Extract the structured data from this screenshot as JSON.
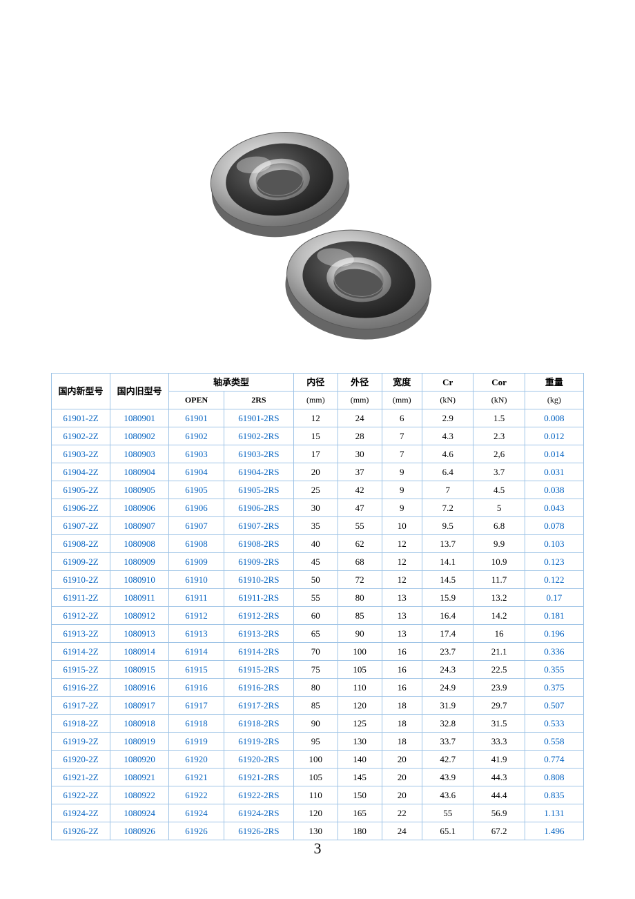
{
  "page_number": "3",
  "image": {
    "alt": "two-ball-bearings-photo",
    "outer_color": "#a8a8a8",
    "seal_color": "#3c3c3c",
    "highlight": "#f2f2f2",
    "bore_color": "#8a8a8a"
  },
  "table": {
    "border_color": "#9dc3e6",
    "link_color": "#0563c1",
    "header": {
      "new_model": "国内新型号",
      "old_model": "国内旧型号",
      "type_group": "轴承类型",
      "open": "OPEN",
      "rs": "2RS",
      "id": "内径",
      "id_unit": "(mm)",
      "od": "外径",
      "od_unit": "(mm)",
      "width": "宽度",
      "width_unit": "(mm)",
      "cr": "Cr",
      "cr_unit": "(kN)",
      "cor": "Cor",
      "cor_unit": "(kN)",
      "weight": "重量",
      "weight_unit": "(kg)"
    },
    "rows": [
      {
        "new": "61901-2Z",
        "old": "1080901",
        "open": "61901",
        "rs": "61901-2RS",
        "id": "12",
        "od": "24",
        "w": "6",
        "cr": "2.9",
        "cor": "1.5",
        "kg": "0.008"
      },
      {
        "new": "61902-2Z",
        "old": "1080902",
        "open": "61902",
        "rs": "61902-2RS",
        "id": "15",
        "od": "28",
        "w": "7",
        "cr": "4.3",
        "cor": "2.3",
        "kg": "0.012"
      },
      {
        "new": "61903-2Z",
        "old": "1080903",
        "open": "61903",
        "rs": "61903-2RS",
        "id": "17",
        "od": "30",
        "w": "7",
        "cr": "4.6",
        "cor": "2,6",
        "kg": "0.014"
      },
      {
        "new": "61904-2Z",
        "old": "1080904",
        "open": "61904",
        "rs": "61904-2RS",
        "id": "20",
        "od": "37",
        "w": "9",
        "cr": "6.4",
        "cor": "3.7",
        "kg": "0.031"
      },
      {
        "new": "61905-2Z",
        "old": "1080905",
        "open": "61905",
        "rs": "61905-2RS",
        "id": "25",
        "od": "42",
        "w": "9",
        "cr": "7",
        "cor": "4.5",
        "kg": "0.038"
      },
      {
        "new": "61906-2Z",
        "old": "1080906",
        "open": "61906",
        "rs": "61906-2RS",
        "id": "30",
        "od": "47",
        "w": "9",
        "cr": "7.2",
        "cor": "5",
        "kg": "0.043"
      },
      {
        "new": "61907-2Z",
        "old": "1080907",
        "open": "61907",
        "rs": "61907-2RS",
        "id": "35",
        "od": "55",
        "w": "10",
        "cr": "9.5",
        "cor": "6.8",
        "kg": "0.078"
      },
      {
        "new": "61908-2Z",
        "old": "1080908",
        "open": "61908",
        "rs": "61908-2RS",
        "id": "40",
        "od": "62",
        "w": "12",
        "cr": "13.7",
        "cor": "9.9",
        "kg": "0.103"
      },
      {
        "new": "61909-2Z",
        "old": "1080909",
        "open": "61909",
        "rs": "61909-2RS",
        "id": "45",
        "od": "68",
        "w": "12",
        "cr": "14.1",
        "cor": "10.9",
        "kg": "0.123"
      },
      {
        "new": "61910-2Z",
        "old": "1080910",
        "open": "61910",
        "rs": "61910-2RS",
        "id": "50",
        "od": "72",
        "w": "12",
        "cr": "14.5",
        "cor": "11.7",
        "kg": "0.122"
      },
      {
        "new": "61911-2Z",
        "old": "1080911",
        "open": "61911",
        "rs": "61911-2RS",
        "id": "55",
        "od": "80",
        "w": "13",
        "cr": "15.9",
        "cor": "13.2",
        "kg": "0.17"
      },
      {
        "new": "61912-2Z",
        "old": "1080912",
        "open": "61912",
        "rs": "61912-2RS",
        "id": "60",
        "od": "85",
        "w": "13",
        "cr": "16.4",
        "cor": "14.2",
        "kg": "0.181"
      },
      {
        "new": "61913-2Z",
        "old": "1080913",
        "open": "61913",
        "rs": "61913-2RS",
        "id": "65",
        "od": "90",
        "w": "13",
        "cr": "17.4",
        "cor": "16",
        "kg": "0.196"
      },
      {
        "new": "61914-2Z",
        "old": "1080914",
        "open": "61914",
        "rs": "61914-2RS",
        "id": "70",
        "od": "100",
        "w": "16",
        "cr": "23.7",
        "cor": "21.1",
        "kg": "0.336"
      },
      {
        "new": "61915-2Z",
        "old": "1080915",
        "open": "61915",
        "rs": "61915-2RS",
        "id": "75",
        "od": "105",
        "w": "16",
        "cr": "24.3",
        "cor": "22.5",
        "kg": "0.355"
      },
      {
        "new": "61916-2Z",
        "old": "1080916",
        "open": "61916",
        "rs": "61916-2RS",
        "id": "80",
        "od": "110",
        "w": "16",
        "cr": "24.9",
        "cor": "23.9",
        "kg": "0.375"
      },
      {
        "new": "61917-2Z",
        "old": "1080917",
        "open": "61917",
        "rs": "61917-2RS",
        "id": "85",
        "od": "120",
        "w": "18",
        "cr": "31.9",
        "cor": "29.7",
        "kg": "0.507"
      },
      {
        "new": "61918-2Z",
        "old": "1080918",
        "open": "61918",
        "rs": "61918-2RS",
        "id": "90",
        "od": "125",
        "w": "18",
        "cr": "32.8",
        "cor": "31.5",
        "kg": "0.533"
      },
      {
        "new": "61919-2Z",
        "old": "1080919",
        "open": "61919",
        "rs": "61919-2RS",
        "id": "95",
        "od": "130",
        "w": "18",
        "cr": "33.7",
        "cor": "33.3",
        "kg": "0.558"
      },
      {
        "new": "61920-2Z",
        "old": "1080920",
        "open": "61920",
        "rs": "61920-2RS",
        "id": "100",
        "od": "140",
        "w": "20",
        "cr": "42.7",
        "cor": "41.9",
        "kg": "0.774"
      },
      {
        "new": "61921-2Z",
        "old": "1080921",
        "open": "61921",
        "rs": "61921-2RS",
        "id": "105",
        "od": "145",
        "w": "20",
        "cr": "43.9",
        "cor": "44.3",
        "kg": "0.808"
      },
      {
        "new": "61922-2Z",
        "old": "1080922",
        "open": "61922",
        "rs": "61922-2RS",
        "id": "110",
        "od": "150",
        "w": "20",
        "cr": "43.6",
        "cor": "44.4",
        "kg": "0.835"
      },
      {
        "new": "61924-2Z",
        "old": "1080924",
        "open": "61924",
        "rs": "61924-2RS",
        "id": "120",
        "od": "165",
        "w": "22",
        "cr": "55",
        "cor": "56.9",
        "kg": "1.131"
      },
      {
        "new": "61926-2Z",
        "old": "1080926",
        "open": "61926",
        "rs": "61926-2RS",
        "id": "130",
        "od": "180",
        "w": "24",
        "cr": "65.1",
        "cor": "67.2",
        "kg": "1.496"
      }
    ]
  }
}
